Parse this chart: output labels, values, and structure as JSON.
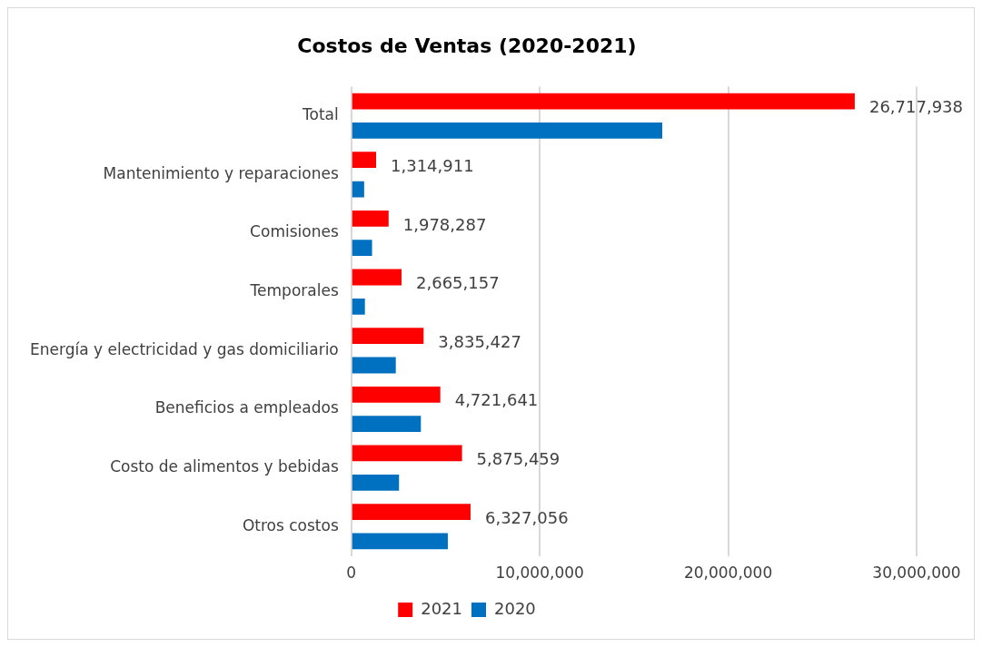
{
  "chart_data": {
    "type": "bar",
    "orientation": "horizontal",
    "title": "Costos de Ventas (2020-2021)",
    "categories": [
      "Total",
      "Mantenimiento y reparaciones",
      "Comisiones",
      "Temporales",
      "Energía y electricidad y gas domiciliario",
      "Beneficios a empleados",
      "Costo de alimentos y bebidas",
      "Otros costos"
    ],
    "series": [
      {
        "name": "2021",
        "color": "#ff0000",
        "values": [
          26717938,
          1314911,
          1978287,
          2665157,
          3835427,
          4721641,
          5875459,
          6327056
        ],
        "value_labels": [
          "26,717,938",
          "1,314,911",
          "1,978,287",
          "2,665,157",
          "3,835,427",
          "4,721,641",
          "5,875,459",
          "6,327,056"
        ]
      },
      {
        "name": "2020",
        "color": "#0070c0",
        "values": [
          16500000,
          680000,
          1100000,
          720000,
          2360000,
          3690000,
          2530000,
          5120000
        ]
      }
    ],
    "xlim": [
      0,
      30000000
    ],
    "xticks": [
      {
        "value": 0,
        "label": "0"
      },
      {
        "value": 10000000,
        "label": "10,000,000"
      },
      {
        "value": 20000000,
        "label": "20,000,000"
      },
      {
        "value": 30000000,
        "label": "30,000,000"
      }
    ],
    "grid": "x",
    "legend": "bottom"
  }
}
